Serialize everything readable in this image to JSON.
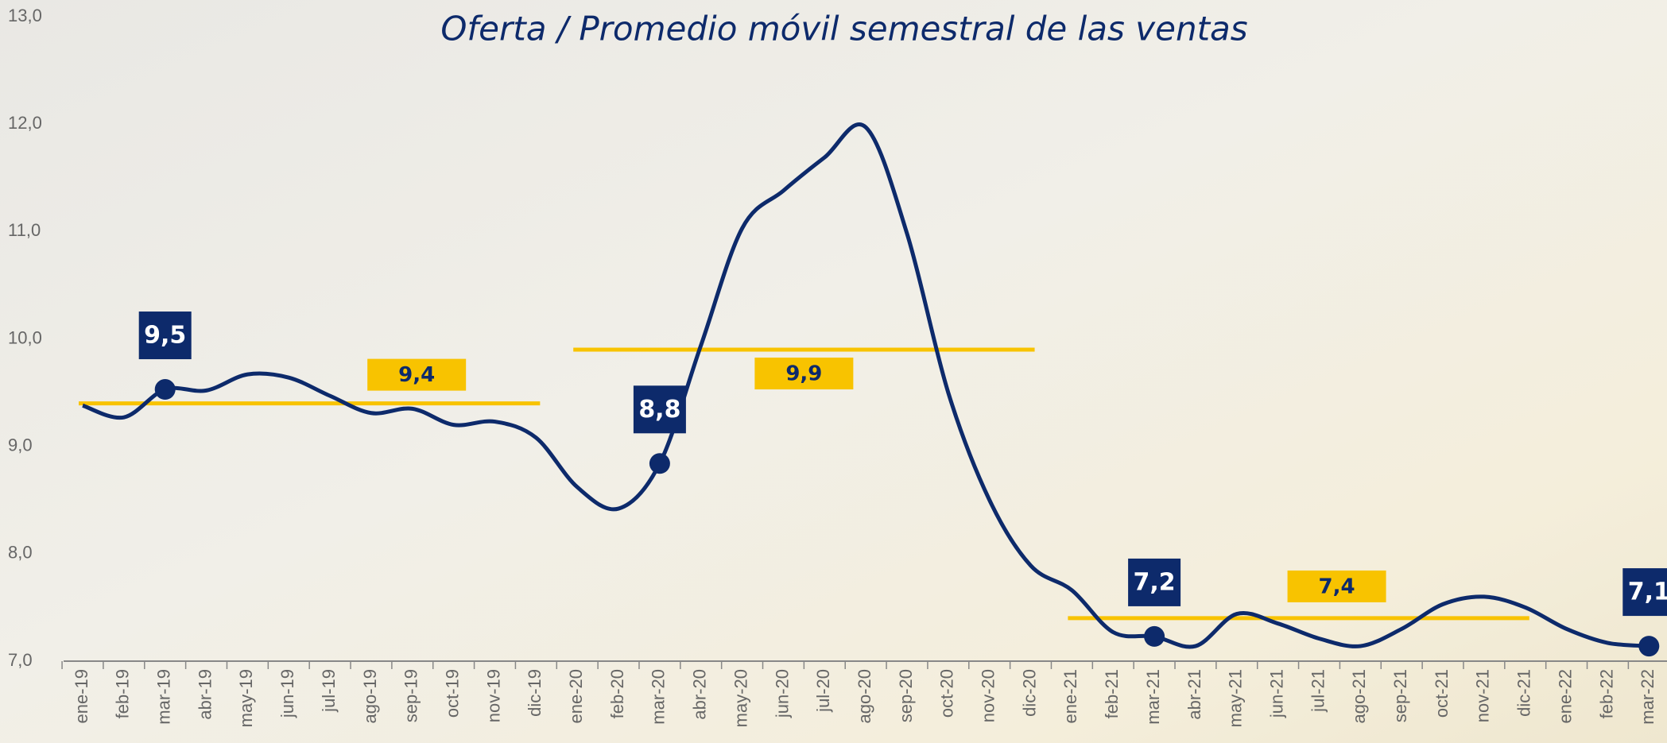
{
  "chart_data": {
    "type": "line",
    "title": "Oferta / Promedio móvil semestral de las ventas",
    "categories": [
      "ene-19",
      "feb-19",
      "mar-19",
      "abr-19",
      "may-19",
      "jun-19",
      "jul-19",
      "ago-19",
      "sep-19",
      "oct-19",
      "nov-19",
      "dic-19",
      "ene-20",
      "feb-20",
      "mar-20",
      "abr-20",
      "may-20",
      "jun-20",
      "jul-20",
      "ago-20",
      "sep-20",
      "oct-20",
      "nov-20",
      "dic-20",
      "ene-21",
      "feb-21",
      "mar-21",
      "abr-21",
      "may-21",
      "jun-21",
      "jul-21",
      "ago-21",
      "sep-21",
      "oct-21",
      "nov-21",
      "dic-21",
      "ene-22",
      "feb-22",
      "mar-22"
    ],
    "values": [
      9.38,
      9.27,
      9.53,
      9.52,
      9.67,
      9.64,
      9.47,
      9.31,
      9.35,
      9.2,
      9.23,
      9.08,
      8.62,
      8.42,
      8.84,
      9.94,
      11.03,
      11.38,
      11.69,
      11.97,
      10.98,
      9.5,
      8.5,
      7.89,
      7.66,
      7.27,
      7.23,
      7.14,
      7.44,
      7.35,
      7.21,
      7.14,
      7.3,
      7.53,
      7.6,
      7.5,
      7.3,
      7.17,
      7.14
    ],
    "value_labels": [
      null,
      null,
      "9,5",
      null,
      null,
      null,
      null,
      null,
      null,
      null,
      null,
      null,
      null,
      null,
      "8,8",
      null,
      null,
      null,
      null,
      null,
      null,
      null,
      null,
      null,
      null,
      null,
      "7,2",
      null,
      null,
      null,
      null,
      null,
      null,
      null,
      null,
      null,
      null,
      null,
      "7,1"
    ],
    "color": "#0d2a6b",
    "averages": [
      {
        "from": "ene-19",
        "to": "dic-19",
        "value": 9.4,
        "label": "9,4"
      },
      {
        "from": "ene-20",
        "to": "dic-20",
        "value": 9.9,
        "label": "9,9"
      },
      {
        "from": "ene-21",
        "to": "dic-21",
        "value": 7.4,
        "label": "7,4"
      }
    ],
    "average_color": "#f8c300",
    "ylim": [
      7,
      13
    ],
    "yticks": [
      {
        "value": 7,
        "label": "7,0"
      },
      {
        "value": 8,
        "label": "8,0"
      },
      {
        "value": 9,
        "label": "9,0"
      },
      {
        "value": 10,
        "label": "10,0"
      },
      {
        "value": 11,
        "label": "11,0"
      },
      {
        "value": 12,
        "label": "12,0"
      },
      {
        "value": 13,
        "label": "13,0"
      }
    ]
  }
}
